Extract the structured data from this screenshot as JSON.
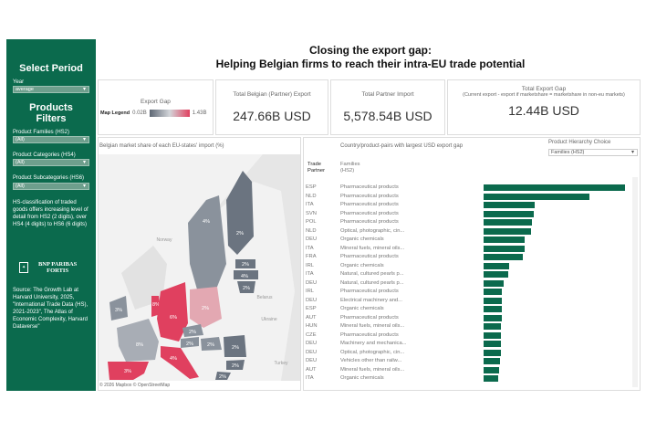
{
  "title": {
    "line1": "Closing the export gap:",
    "line2": "Helping Belgian firms to reach their intra-EU trade potential"
  },
  "sidebar": {
    "select_period": "Select Period",
    "year_label": "Year",
    "year_value": "average",
    "filters_title": "Products Filters",
    "hs2_label": "Product Families (HS2)",
    "hs2_value": "(All)",
    "hs4_label": "Product Categories (HS4)",
    "hs4_value": "(All)",
    "hs6_label": "Product Subcategories (HS6)",
    "hs6_value": "(All)",
    "info": "HS-classification of traded goods offers increasing level of detail from HS2 (2 digits), over HS4 (4 digits) to HS6 (6 digits)",
    "logo_text": "BNP PARIBAS FORTIS",
    "source": "Source: The Growth Lab at Harvard University, 2025, \"International Trade Data (HS), 2021-2023\", The Atlas of Economic Complexity, Harvard Dataverse\""
  },
  "legend": {
    "title": "Export Gap",
    "label": "Map Legend",
    "min": "0.02B",
    "max": "1.43B",
    "colors": [
      "#5d6673",
      "#d3d6da",
      "#e0405f"
    ]
  },
  "kpis": [
    {
      "title": "Total Belgian (Partner) Export",
      "value": "247.66B USD"
    },
    {
      "title": "Total Partner Import",
      "value": "5,578.54B USD"
    },
    {
      "title": "Total Export Gap",
      "subtitle": "(Current export - export if marketshare = marketshare in non-eu markets)",
      "value": "12.44B USD"
    }
  ],
  "map": {
    "title": "Belgian market share of each EU-states' import (%)",
    "attribution": "© 2026 Mapbox © OpenStreetMap",
    "labels": {
      "sweden": "4%",
      "finland": "2%",
      "estonia": "2%",
      "latvia": "4%",
      "lithuania": "2%",
      "ireland": "3%",
      "germany": "6%",
      "poland": "2%",
      "netherlands": "8%",
      "france": "8%",
      "czechia": "2%",
      "austria": "2%",
      "hungary": "2%",
      "romania": "2%",
      "bulgaria": "2%",
      "italy": "4%",
      "spain": "3%",
      "greece": "2%"
    },
    "bg_labels": {
      "norway": "Norway",
      "belarus": "Belarus",
      "ukraine": "Ukraine",
      "turkey": "Turkey"
    }
  },
  "table": {
    "title": "Country/product-pairs with largest USD export gap",
    "hierarchy_label": "Product Hierarchy Choice",
    "hierarchy_value": "Families (HS2)",
    "col1": "Trade Partner",
    "col2": "Families (HS2)",
    "rows": [
      {
        "c": "ESP",
        "f": "Pharmaceutical products",
        "v": 100
      },
      {
        "c": "NLD",
        "f": "Pharmaceutical products",
        "v": 74.6
      },
      {
        "c": "ITA",
        "f": "Pharmaceutical products",
        "v": 36.1
      },
      {
        "c": "SVN",
        "f": "Pharmaceutical products",
        "v": 35.7
      },
      {
        "c": "POL",
        "f": "Pharmaceutical products",
        "v": 34.4
      },
      {
        "c": "NLD",
        "f": "Optical, photographic, cin...",
        "v": 33.8
      },
      {
        "c": "DEU",
        "f": "Organic chemicals",
        "v": 28.8
      },
      {
        "c": "ITA",
        "f": "Mineral fuels, mineral oils...",
        "v": 28.8
      },
      {
        "c": "FRA",
        "f": "Pharmaceutical products",
        "v": 27.5
      },
      {
        "c": "IRL",
        "f": "Organic chemicals",
        "v": 17.8
      },
      {
        "c": "ITA",
        "f": "Natural, cultured pearls p...",
        "v": 17.4
      },
      {
        "c": "DEU",
        "f": "Natural, cultured pearls p...",
        "v": 14.4
      },
      {
        "c": "IRL",
        "f": "Pharmaceutical products",
        "v": 13.1
      },
      {
        "c": "DEU",
        "f": "Electrical machinery and...",
        "v": 13.1
      },
      {
        "c": "ESP",
        "f": "Organic chemicals",
        "v": 12.9
      },
      {
        "c": "AUT",
        "f": "Pharmaceutical products",
        "v": 12.9
      },
      {
        "c": "HUN",
        "f": "Mineral fuels, mineral oils...",
        "v": 12.5
      },
      {
        "c": "CZE",
        "f": "Pharmaceutical products",
        "v": 12.0
      },
      {
        "c": "DEU",
        "f": "Machinery and mechanica...",
        "v": 12.0
      },
      {
        "c": "DEU",
        "f": "Optical, photographic, cin...",
        "v": 12.0
      },
      {
        "c": "DEU",
        "f": "Vehicles other than railw...",
        "v": 11.4
      },
      {
        "c": "AUT",
        "f": "Mineral fuels, mineral oils...",
        "v": 11.0
      },
      {
        "c": "ITA",
        "f": "Organic chemicals",
        "v": 10.5
      }
    ]
  }
}
